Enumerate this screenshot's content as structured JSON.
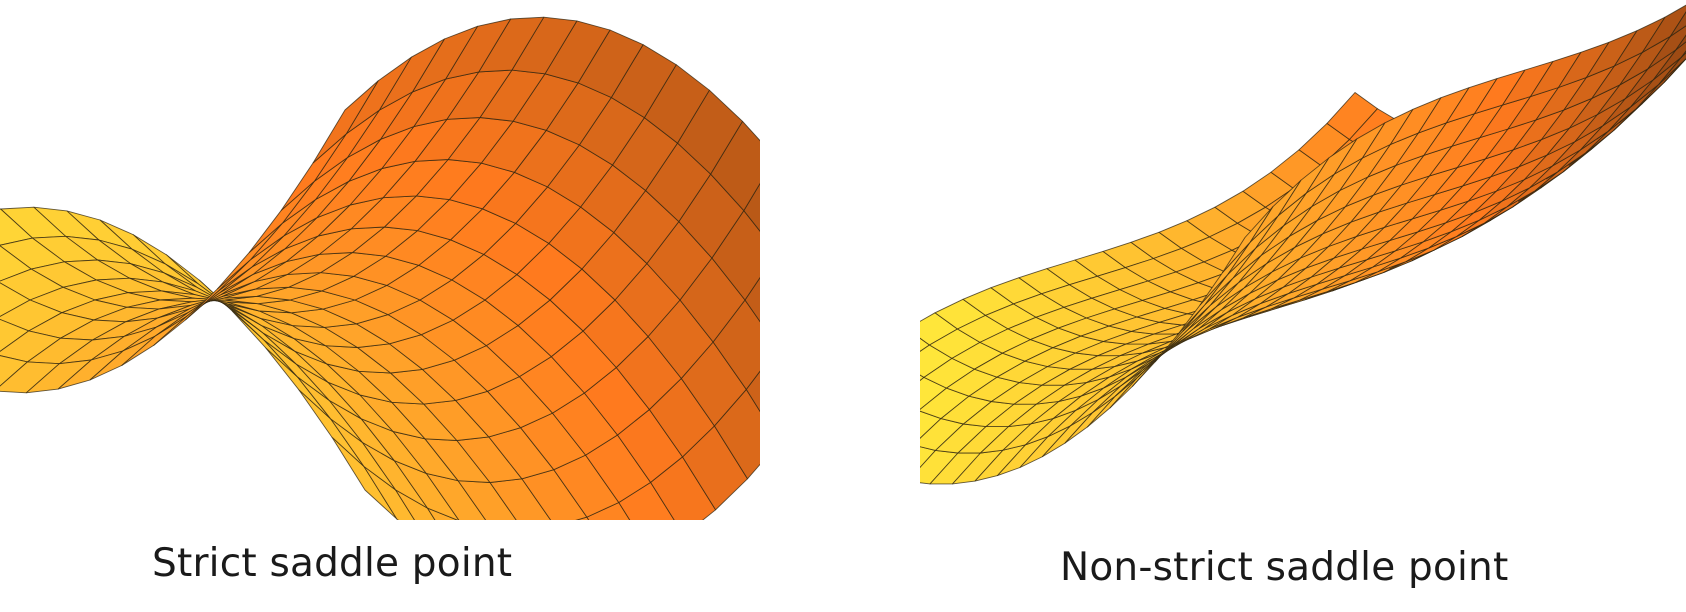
{
  "panels": [
    {
      "caption": "Strict saddle point"
    },
    {
      "caption": "Non-strict saddle point"
    }
  ],
  "colors": {
    "surface_light": "#ffe63a",
    "surface_mid": "#ffa62a",
    "surface_orange": "#ff7a1e",
    "surface_dark": "#7a3a10",
    "mesh_line": "#2e2410",
    "caption_text": "#1a1a1a",
    "background": "#ffffff"
  }
}
